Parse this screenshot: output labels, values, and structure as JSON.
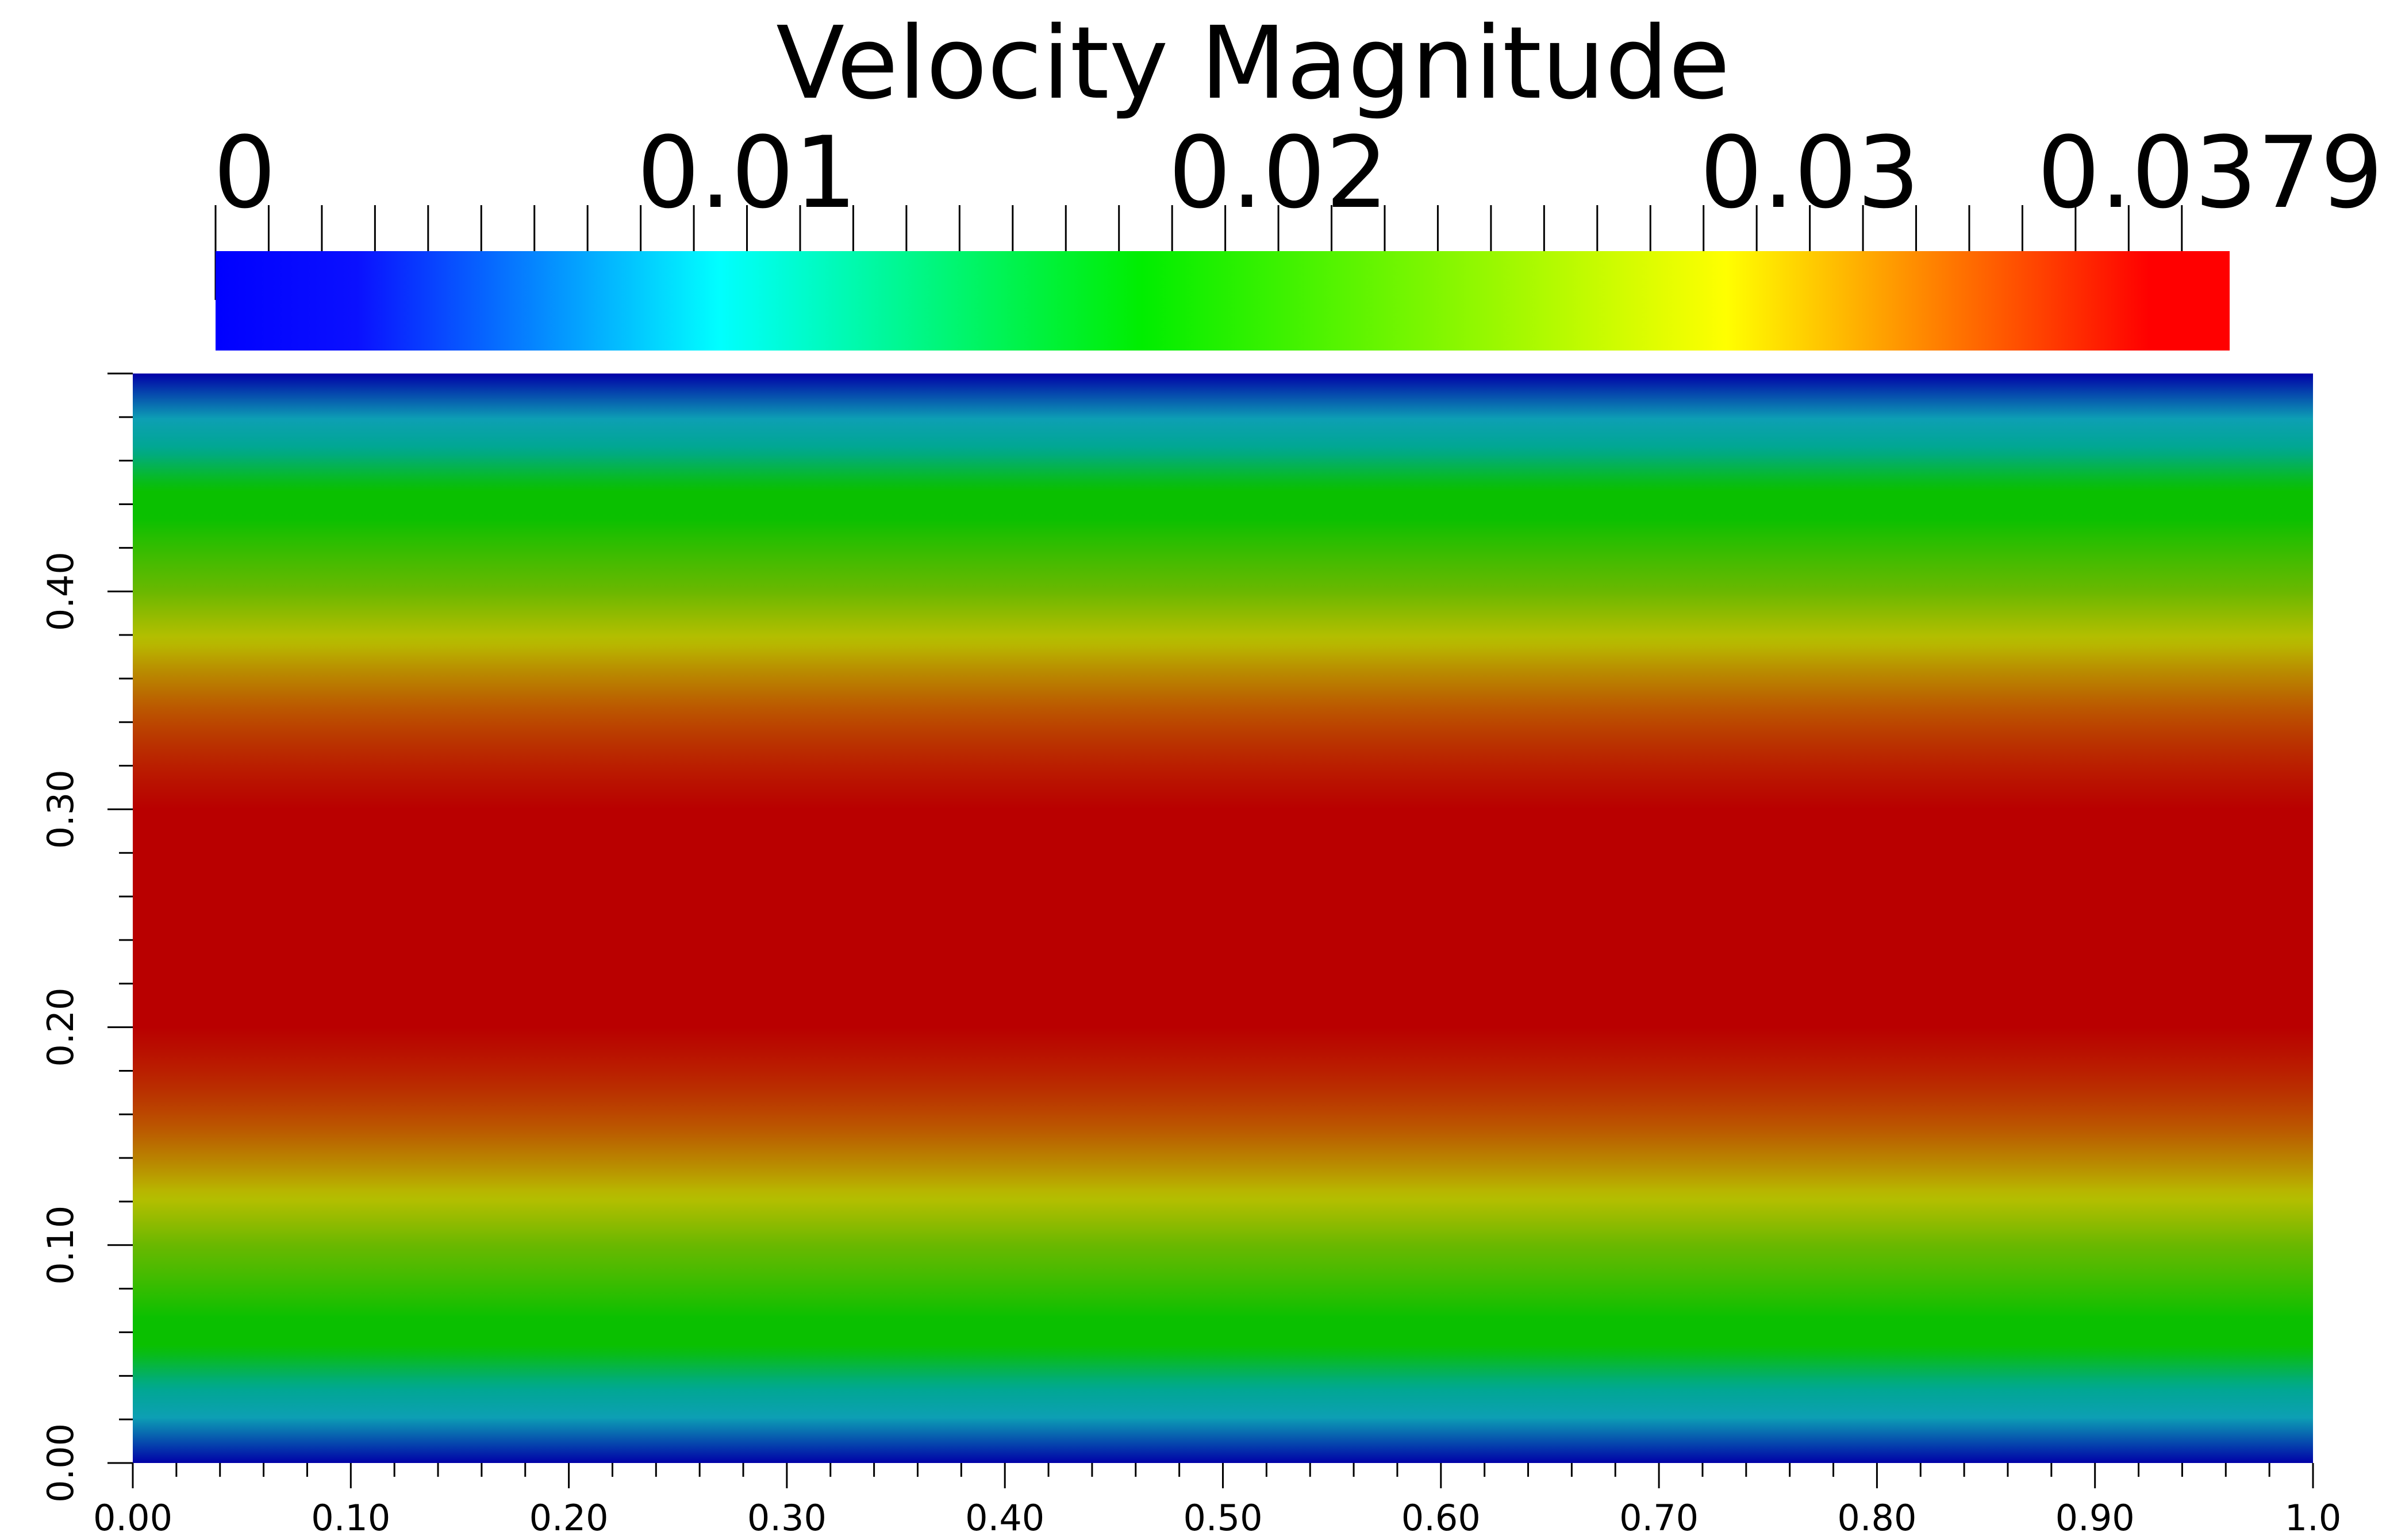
{
  "chart_data": {
    "type": "heatmap",
    "title": "Velocity Magnitude",
    "colorbar": {
      "min": 0,
      "max": 0.0379,
      "tick_labels": [
        "0",
        "0.01",
        "0.02",
        "0.03",
        "0.0379"
      ],
      "tick_values": [
        0,
        0.01,
        0.02,
        0.03,
        0.0379
      ],
      "colormap": [
        {
          "t": 0.0,
          "color": "#0000ff"
        },
        {
          "t": 0.07,
          "color": "#0a10ff"
        },
        {
          "t": 0.25,
          "color": "#00ffff"
        },
        {
          "t": 0.46,
          "color": "#00ee00"
        },
        {
          "t": 0.75,
          "color": "#ffff00"
        },
        {
          "t": 0.96,
          "color": "#ff0000"
        },
        {
          "t": 1.0,
          "color": "#ff0000"
        }
      ]
    },
    "xlim": [
      0,
      1.0
    ],
    "ylim": [
      0,
      0.5
    ],
    "x_tick_labels": [
      "0.00",
      "0.10",
      "0.20",
      "0.30",
      "0.40",
      "0.50",
      "0.60",
      "0.70",
      "0.80",
      "0.90",
      "1.0"
    ],
    "x_tick_values": [
      0,
      0.1,
      0.2,
      0.3,
      0.4,
      0.5,
      0.6,
      0.7,
      0.8,
      0.9,
      1.0
    ],
    "y_tick_labels": [
      "0.00",
      "0.10",
      "0.20",
      "0.30",
      "0.40"
    ],
    "y_tick_values": [
      0,
      0.1,
      0.2,
      0.3,
      0.4
    ],
    "field": "parabolic channel flow profile, uniform in x, max 0.0379 at y=0.25, zero at walls y=0 and y=0.5",
    "profile": {
      "y": [
        0.0,
        0.02,
        0.05,
        0.1,
        0.15,
        0.2,
        0.25,
        0.3,
        0.35,
        0.4,
        0.45,
        0.48,
        0.5
      ],
      "value": [
        0.0,
        0.0058,
        0.0136,
        0.0243,
        0.0319,
        0.0364,
        0.0379,
        0.0364,
        0.0319,
        0.0243,
        0.0136,
        0.0058,
        0.0
      ],
      "plot_colors": [
        {
          "t": 0.0,
          "color": "#0000a8"
        },
        {
          "t": 0.16,
          "color": "#0d9fb4"
        },
        {
          "t": 0.26,
          "color": "#00a890"
        },
        {
          "t": 0.38,
          "color": "#0ac000"
        },
        {
          "t": 0.46,
          "color": "#0ac000"
        },
        {
          "t": 0.64,
          "color": "#6ab800"
        },
        {
          "t": 0.74,
          "color": "#b8be00"
        },
        {
          "t": 0.86,
          "color": "#bb5000"
        },
        {
          "t": 0.96,
          "color": "#b90000"
        },
        {
          "t": 1.0,
          "color": "#b90000"
        }
      ]
    },
    "xlabel": "",
    "ylabel": "",
    "grid": false,
    "legend": "colorbar top"
  }
}
